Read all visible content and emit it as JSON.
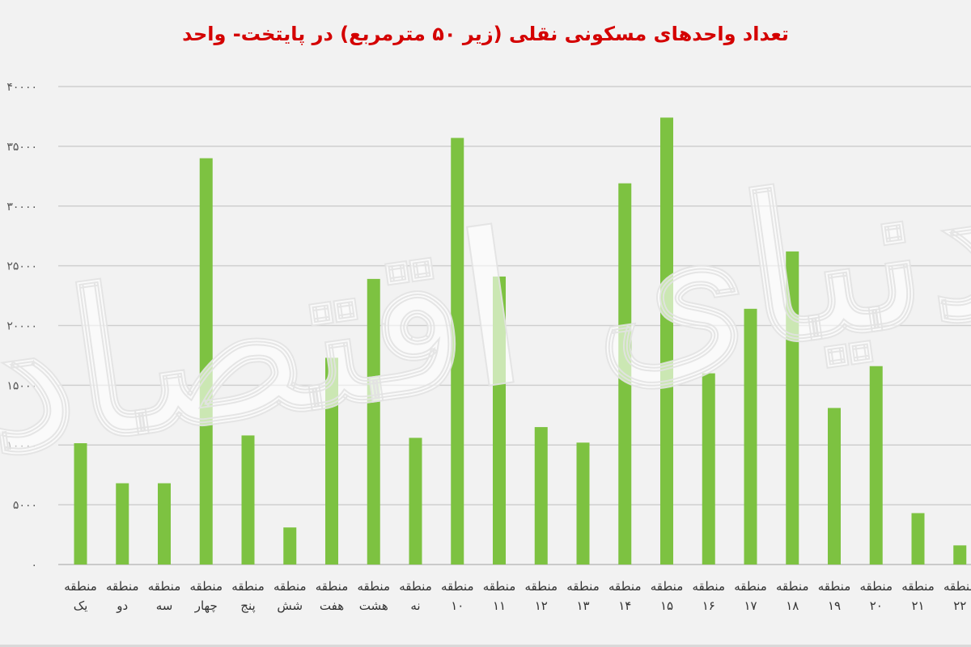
{
  "chart_data": {
    "type": "bar",
    "title": "تعداد واحدهای مسکونی نقلی (زیر ۵۰ مترمربع) در پایتخت- واحد",
    "xlabel": "",
    "ylabel": "",
    "ylim": [
      0,
      40000
    ],
    "ytick_labels": [
      "۰",
      "۵۰۰۰",
      "۱۰۰۰۰",
      "۱۵۰۰۰",
      "۲۰۰۰۰",
      "۲۵۰۰۰",
      "۳۰۰۰۰",
      "۳۵۰۰۰",
      "۴۰۰۰۰"
    ],
    "categories": [
      [
        "منطقه",
        "یک"
      ],
      [
        "منطقه",
        "دو"
      ],
      [
        "منطقه",
        "سه"
      ],
      [
        "منطقه",
        "چهار"
      ],
      [
        "منطقه",
        "پنج"
      ],
      [
        "منطقه",
        "شش"
      ],
      [
        "منطقه",
        "هفت"
      ],
      [
        "منطقه",
        "هشت"
      ],
      [
        "منطقه",
        "نه"
      ],
      [
        "منطقه",
        "۱۰"
      ],
      [
        "منطقه",
        "۱۱"
      ],
      [
        "منطقه",
        "۱۲"
      ],
      [
        "منطقه",
        "۱۳"
      ],
      [
        "منطقه",
        "۱۴"
      ],
      [
        "منطقه",
        "۱۵"
      ],
      [
        "منطقه",
        "۱۶"
      ],
      [
        "منطقه",
        "۱۷"
      ],
      [
        "منطقه",
        "۱۸"
      ],
      [
        "منطقه",
        "۱۹"
      ],
      [
        "منطقه",
        "۲۰"
      ],
      [
        "منطقه",
        "۲۱"
      ],
      [
        "منطقه",
        "۲۲"
      ]
    ],
    "values": [
      10150,
      6800,
      6800,
      34000,
      10800,
      3100,
      17300,
      23900,
      10600,
      35700,
      24100,
      11500,
      10200,
      31900,
      37400,
      16000,
      21400,
      26200,
      13100,
      16600,
      4300,
      1600
    ],
    "bar_color": "#7dc241",
    "grid": true,
    "legend": "none"
  },
  "watermark": "دنیای اقتصاد"
}
